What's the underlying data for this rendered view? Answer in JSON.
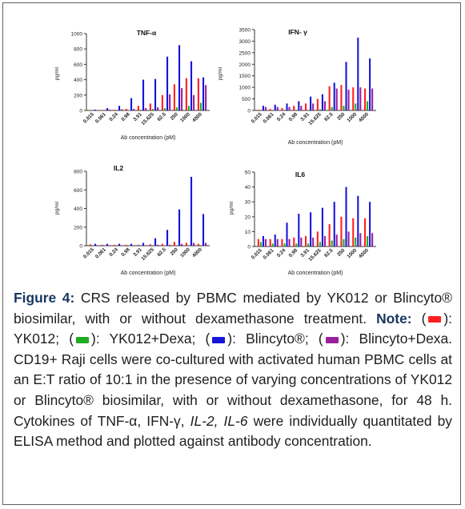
{
  "chart_data": [
    {
      "type": "bar",
      "title": "TNF-α",
      "ylabel": "pg/ml",
      "xlabel": "Ab concentration (pM)",
      "ylim": [
        0,
        1000
      ],
      "yticks": [
        0,
        200,
        400,
        600,
        800,
        1000
      ],
      "categories": [
        "0.015",
        "0.061",
        "0.24",
        "0.98",
        "3.91",
        "15.625",
        "62.5",
        "250",
        "1000",
        "4000"
      ],
      "series": [
        {
          "color": "#ff1f1f",
          "values": [
            5,
            5,
            10,
            20,
            60,
            90,
            200,
            340,
            420,
            420
          ]
        },
        {
          "color": "#22aa22",
          "values": [
            0,
            0,
            0,
            5,
            10,
            20,
            30,
            40,
            60,
            100
          ]
        },
        {
          "color": "#1515d8",
          "values": [
            10,
            30,
            60,
            160,
            400,
            410,
            700,
            850,
            640,
            430
          ]
        },
        {
          "color": "#9b1f9b",
          "values": [
            5,
            10,
            15,
            20,
            30,
            40,
            210,
            290,
            200,
            330
          ]
        }
      ]
    },
    {
      "type": "bar",
      "title": "IFN- γ",
      "ylabel": "pg/ml",
      "xlabel": "Ab concentration (pM)",
      "ylim": [
        0,
        3500
      ],
      "yticks": [
        0,
        500,
        1000,
        1500,
        2000,
        2500,
        3000,
        3500
      ],
      "categories": [
        "0.015",
        "0.061",
        "0.24",
        "0.98",
        "3.91",
        "15.625",
        "62.5",
        "250",
        "1000",
        "4000"
      ],
      "series": [
        {
          "color": "#ff1f1f",
          "values": [
            30,
            60,
            100,
            200,
            300,
            500,
            1050,
            1100,
            1000,
            950
          ]
        },
        {
          "color": "#22aa22",
          "values": [
            0,
            0,
            0,
            0,
            0,
            50,
            150,
            200,
            300,
            400
          ]
        },
        {
          "color": "#1515d8",
          "values": [
            200,
            250,
            300,
            400,
            600,
            700,
            1200,
            2100,
            3150,
            2250
          ]
        },
        {
          "color": "#9b1f9b",
          "values": [
            150,
            150,
            150,
            200,
            300,
            400,
            950,
            900,
            1000,
            950
          ]
        }
      ]
    },
    {
      "type": "bar",
      "title": "IL2",
      "ylabel": "pg/ml",
      "xlabel": "Ab concentration (pM)",
      "ylim": [
        0,
        800
      ],
      "yticks": [
        0,
        200,
        400,
        600,
        800
      ],
      "categories": [
        "0.015",
        "0.061",
        "0.24",
        "0.98",
        "3.91",
        "15.625",
        "62.5",
        "250",
        "1000",
        "4000"
      ],
      "series": [
        {
          "color": "#ff1f1f",
          "values": [
            15,
            10,
            10,
            10,
            10,
            15,
            20,
            40,
            30,
            20
          ]
        },
        {
          "color": "#22aa22",
          "values": [
            0,
            0,
            0,
            0,
            0,
            0,
            0,
            0,
            0,
            0
          ]
        },
        {
          "color": "#1515d8",
          "values": [
            20,
            20,
            20,
            20,
            30,
            80,
            170,
            390,
            740,
            340
          ]
        },
        {
          "color": "#9b1f9b",
          "values": [
            5,
            5,
            5,
            5,
            5,
            10,
            10,
            20,
            30,
            30
          ]
        }
      ]
    },
    {
      "type": "bar",
      "title": "IL6",
      "ylabel": "pg/ml",
      "xlabel": "Ab concentration (pM)",
      "ylim": [
        0,
        50
      ],
      "yticks": [
        0,
        10,
        20,
        30,
        40,
        50
      ],
      "categories": [
        "0.015",
        "0.061",
        "0.24",
        "0.98",
        "3.91",
        "15.625",
        "62.5",
        "250",
        "1000",
        "4000"
      ],
      "series": [
        {
          "color": "#ff1f1f",
          "values": [
            5,
            5,
            5,
            6,
            7,
            10,
            15,
            20,
            19,
            19
          ]
        },
        {
          "color": "#22aa22",
          "values": [
            3,
            2,
            2,
            2,
            2,
            3,
            4,
            5,
            6,
            7
          ]
        },
        {
          "color": "#1515d8",
          "values": [
            7,
            8,
            16,
            22,
            23,
            26,
            30,
            40,
            34,
            30
          ]
        },
        {
          "color": "#9b1f9b",
          "values": [
            5,
            5,
            5,
            6,
            6,
            7,
            8,
            10,
            9,
            9
          ]
        }
      ]
    }
  ],
  "caption": {
    "lead": "Figure 4:",
    "text1": " CRS released by PBMC mediated by YK012 or Blincyto® biosimilar, with or without dexamethasone treatment. ",
    "note": "Note:",
    "k1_open": " (",
    "k1_close": "): YK012; (",
    "k2_close": "): YK012+Dexa; (",
    "k3_close": "): Blincyto®; (",
    "k4_close": "): Blincyto+Dexa. CD19+ Raji cells were co-cultured with activated human PBMC cells at an E:T ratio of 10:1 in the presence of varying concentrations of YK012 or Blincyto® biosimilar, with or without dexamethasone, for 48 h. Cytokines of TNF-α, IFN-γ, ",
    "il2": "IL-2, IL-6",
    "tail": " were individually quantitated by ELISA method and plotted against antibody concentration."
  },
  "legend_colors": [
    "#ff1f1f",
    "#22aa22",
    "#1515d8",
    "#9b1f9b"
  ]
}
